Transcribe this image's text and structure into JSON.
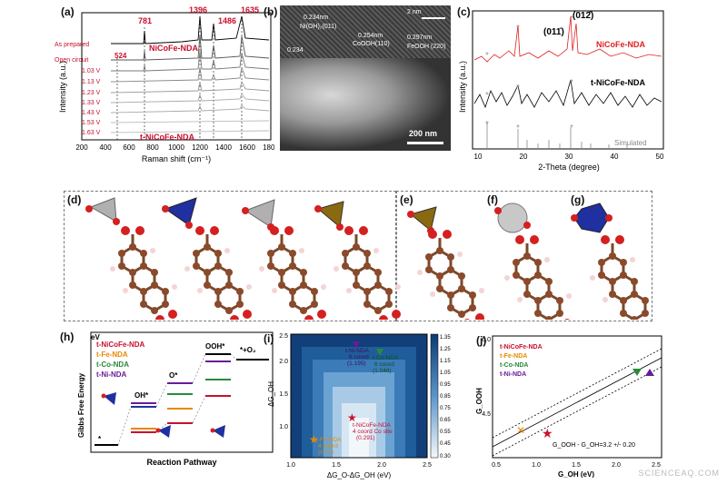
{
  "labels": {
    "a": "(a)",
    "b": "(b)",
    "c": "(c)",
    "d": "(d)",
    "e": "(e)",
    "f": "(f)",
    "g": "(g)",
    "h": "(h)",
    "i": "(i)",
    "j": "(j)"
  },
  "watermark": "SCIENCEAQ.COM",
  "panel_a": {
    "peaks": [
      "1396",
      "1635",
      "781",
      "1486",
      "524"
    ],
    "sample_top": "NiCoFe-NDA",
    "sample_bottom": "t-NiCoFe-NDA",
    "rows": [
      "As prepared",
      "Open circuit",
      "1.03 V",
      "1.13 V",
      "1.23 V",
      "1.33 V",
      "1.43 V",
      "1.53 V",
      "1.63 V"
    ],
    "ylabel": "Intensity (a.u.)",
    "xlabel": "Raman shift (cm⁻¹)",
    "xticks": [
      "200",
      "400",
      "600",
      "800",
      "1000",
      "1200",
      "1400",
      "1600",
      "1800"
    ]
  },
  "panel_b": {
    "scale_top": "2 nm",
    "ann1": "0.234nm",
    "ann2": "Ni(OH)₂(011)",
    "ann3": "0.254nm",
    "ann4": "CoOOH(110)",
    "ann5": "0.297nm",
    "ann6": "FeOOH (220)",
    "ann7": "0.234",
    "scale_bottom": "200 nm"
  },
  "panel_c": {
    "peak1": "(011̄)",
    "peak2": "(012̄)",
    "series": [
      "NiCoFe-NDA",
      "t-NiCoFe-NDA",
      "Simulated"
    ],
    "ylabel": "Intensity (a.u.)",
    "xlabel": "2-Theta (degree)",
    "xticks": [
      "10",
      "20",
      "30",
      "40",
      "50"
    ]
  },
  "panel_h": {
    "legend": [
      "t-NiCoFe-NDA",
      "t-Fe-NDA",
      "t-Co-NDA",
      "t-Ni-NDA"
    ],
    "legend_colors": [
      "#c8102e",
      "#e58a00",
      "#2a8a3a",
      "#6a1b9a"
    ],
    "states": [
      "OH*",
      "O*",
      "OOH*",
      "*+O₂",
      "*"
    ],
    "ylabel": "Gibbs Free Energy",
    "yunit": "eV",
    "xlabel": "Reaction Pathway"
  },
  "panel_i": {
    "xlabel": "ΔG_O-ΔG_OH (eV)",
    "ylabel": "ΔG_OH",
    "xticks": [
      "1.0",
      "1.5",
      "2.0",
      "2.5"
    ],
    "yticks": [
      "1.0",
      "1.5",
      "2.0",
      "2.5"
    ],
    "cbar_ticks": [
      "1.35",
      "1.30",
      "1.25",
      "1.20",
      "1.15",
      "1.10",
      "1.05",
      "1.00",
      "0.95",
      "0.90",
      "0.85",
      "0.80",
      "0.75",
      "0.70",
      "0.65",
      "0.60",
      "0.55",
      "0.50",
      "0.45",
      "0.40",
      "0.35",
      "0.30"
    ],
    "p_ni": [
      "t-Ni-NDA",
      "6 coord",
      "(1.195)"
    ],
    "p_co": [
      "t-Co-NDA",
      "6 coord",
      "(1.046)"
    ],
    "p_nicofe": [
      "t-NiCoFe-NDA",
      "4 coord Co site",
      "(0.291)"
    ],
    "p_fe": [
      "t-Fe-NDA",
      "4 coord",
      "(0.??)"
    ]
  },
  "panel_j": {
    "legend": [
      "t-NiCoFe-NDA",
      "t-Fe-NDA",
      "t-Co-NDA",
      "t-Ni-NDA"
    ],
    "legend_colors": [
      "#c8102e",
      "#e58a00",
      "#2a8a3a",
      "#6a1b9a"
    ],
    "ylabel": "G_OOH",
    "xlabel": "G_OH  (eV)",
    "yticks": [
      "6.0",
      "4.5"
    ],
    "xticks": [
      "0.5",
      "1.0",
      "1.5",
      "2.0",
      "2.5"
    ],
    "eq": "G_OOH - G_OH=3.2 +/- 0.20"
  }
}
